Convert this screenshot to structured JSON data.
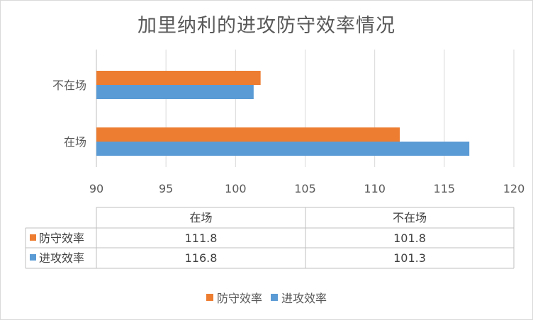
{
  "chart_data": {
    "type": "bar",
    "orientation": "horizontal",
    "title": "加里纳利的进攻防守效率情况",
    "categories": [
      "在场",
      "不在场"
    ],
    "series": [
      {
        "name": "进攻效率",
        "values": [
          116.8,
          101.3
        ],
        "color": "#5b9bd5"
      },
      {
        "name": "防守效率",
        "values": [
          111.8,
          101.8
        ],
        "color": "#ed7d31"
      }
    ],
    "xlim": [
      90,
      120
    ],
    "x_ticks": [
      90,
      95,
      100,
      105,
      110,
      115,
      120
    ],
    "xlabel": "",
    "ylabel": "",
    "grid": true,
    "legend": "bottom",
    "data_table": {
      "columns": [
        "在场",
        "不在场"
      ],
      "rows": [
        {
          "label": "防守效率",
          "values": [
            "111.8",
            "101.8"
          ],
          "color": "#ed7d31"
        },
        {
          "label": "进攻效率",
          "values": [
            "116.8",
            "101.3"
          ],
          "color": "#5b9bd5"
        }
      ]
    }
  },
  "legend_items": [
    {
      "label": "防守效率",
      "color": "#ed7d31"
    },
    {
      "label": "进攻效率",
      "color": "#5b9bd5"
    }
  ]
}
